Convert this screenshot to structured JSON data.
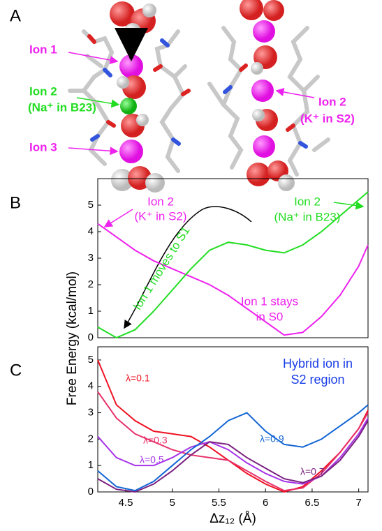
{
  "panel_a": {
    "label": "A",
    "annotations": [
      {
        "lines": [
          "Ion 1"
        ],
        "color": "#ee22ee"
      },
      {
        "lines": [
          "Ion 2",
          "(Na⁺ in B23)"
        ],
        "color": "#22dd22"
      },
      {
        "lines": [
          "Ion 3"
        ],
        "color": "#ee22ee"
      },
      {
        "lines": [
          "Ion 2",
          "(K⁺ in S2)"
        ],
        "color": "#ee22ee"
      }
    ]
  },
  "ylabel": "Free Energy (kcal/mol)",
  "chart_data": [
    {
      "type": "line",
      "panel_label": "B",
      "x": [
        4.2,
        4.4,
        4.6,
        4.8,
        5.0,
        5.2,
        5.4,
        5.6,
        5.8,
        6.0,
        6.2,
        6.4,
        6.6,
        6.8,
        7.0,
        7.1
      ],
      "series": [
        {
          "color": "#ee22ee",
          "values": [
            4.3,
            3.8,
            3.3,
            2.9,
            2.6,
            2.3,
            2.0,
            1.6,
            1.1,
            0.6,
            0.1,
            0.2,
            0.8,
            1.6,
            2.7,
            3.5
          ]
        },
        {
          "color": "#22dd22",
          "values": [
            0.4,
            0.0,
            0.3,
            1.0,
            1.8,
            2.6,
            3.3,
            3.6,
            3.5,
            3.3,
            3.2,
            3.5,
            4.0,
            4.6,
            5.2,
            5.5
          ]
        }
      ],
      "annotations": [
        {
          "lines": [
            "Ion 2",
            "(K⁺ in S2)"
          ],
          "color": "#ee22ee"
        },
        {
          "lines": [
            "Ion 2",
            "(Na⁺ in B23)"
          ],
          "color": "#22dd22"
        },
        {
          "lines": [
            "Ion 1 moves to S1"
          ],
          "color": "#22dd22"
        },
        {
          "lines": [
            "Ion 1 stays",
            "in S0"
          ],
          "color": "#ee22ee"
        }
      ],
      "xlim": [
        4.2,
        7.1
      ],
      "ylim": [
        0,
        6
      ],
      "yticks": [
        0,
        1,
        2,
        3,
        4,
        5
      ]
    },
    {
      "type": "line",
      "panel_label": "C",
      "title": [
        "Hybrid ion in",
        "S2 region"
      ],
      "title_color": "#1a3ee8",
      "x": [
        4.2,
        4.4,
        4.6,
        4.8,
        5.0,
        5.2,
        5.4,
        5.6,
        5.8,
        6.0,
        6.2,
        6.4,
        6.6,
        6.8,
        7.0,
        7.1
      ],
      "series": [
        {
          "name": "λ=0.1",
          "color": "#ee1122",
          "values": [
            5.0,
            3.3,
            2.7,
            2.3,
            2.2,
            2.1,
            1.7,
            1.2,
            0.7,
            0.3,
            0.0,
            0.2,
            0.8,
            1.5,
            2.4,
            3.1
          ]
        },
        {
          "name": "λ=0.3",
          "color": "#e8306a",
          "values": [
            3.8,
            2.8,
            2.2,
            1.9,
            1.6,
            1.4,
            1.3,
            1.2,
            0.8,
            0.4,
            0.05,
            0.15,
            0.7,
            1.5,
            2.4,
            3.0
          ]
        },
        {
          "name": "λ=0.5",
          "color": "#a633e8",
          "values": [
            2.1,
            1.3,
            1.0,
            1.0,
            1.3,
            1.7,
            1.9,
            1.6,
            1.1,
            0.7,
            0.4,
            0.3,
            0.6,
            1.3,
            2.2,
            2.8
          ]
        },
        {
          "name": "λ=0.7",
          "color": "#7a2080",
          "values": [
            0.5,
            0.1,
            0.0,
            0.3,
            0.8,
            1.4,
            1.9,
            1.8,
            1.3,
            0.9,
            0.5,
            0.35,
            0.6,
            1.2,
            2.1,
            2.7
          ]
        },
        {
          "name": "λ=0.9",
          "color": "#1466d4",
          "values": [
            0.8,
            0.2,
            0.05,
            0.4,
            1.0,
            1.6,
            2.1,
            2.7,
            3.0,
            2.3,
            1.8,
            1.7,
            2.0,
            2.5,
            3.0,
            3.3
          ]
        }
      ],
      "xlabel": "Δz₁₂ (Å)",
      "xlim": [
        4.2,
        7.1
      ],
      "ylim": [
        0,
        5.5
      ],
      "yticks": [
        0,
        1,
        2,
        3,
        4,
        5
      ],
      "xticks": [
        4.5,
        5,
        5.5,
        6,
        6.5,
        7
      ]
    }
  ]
}
